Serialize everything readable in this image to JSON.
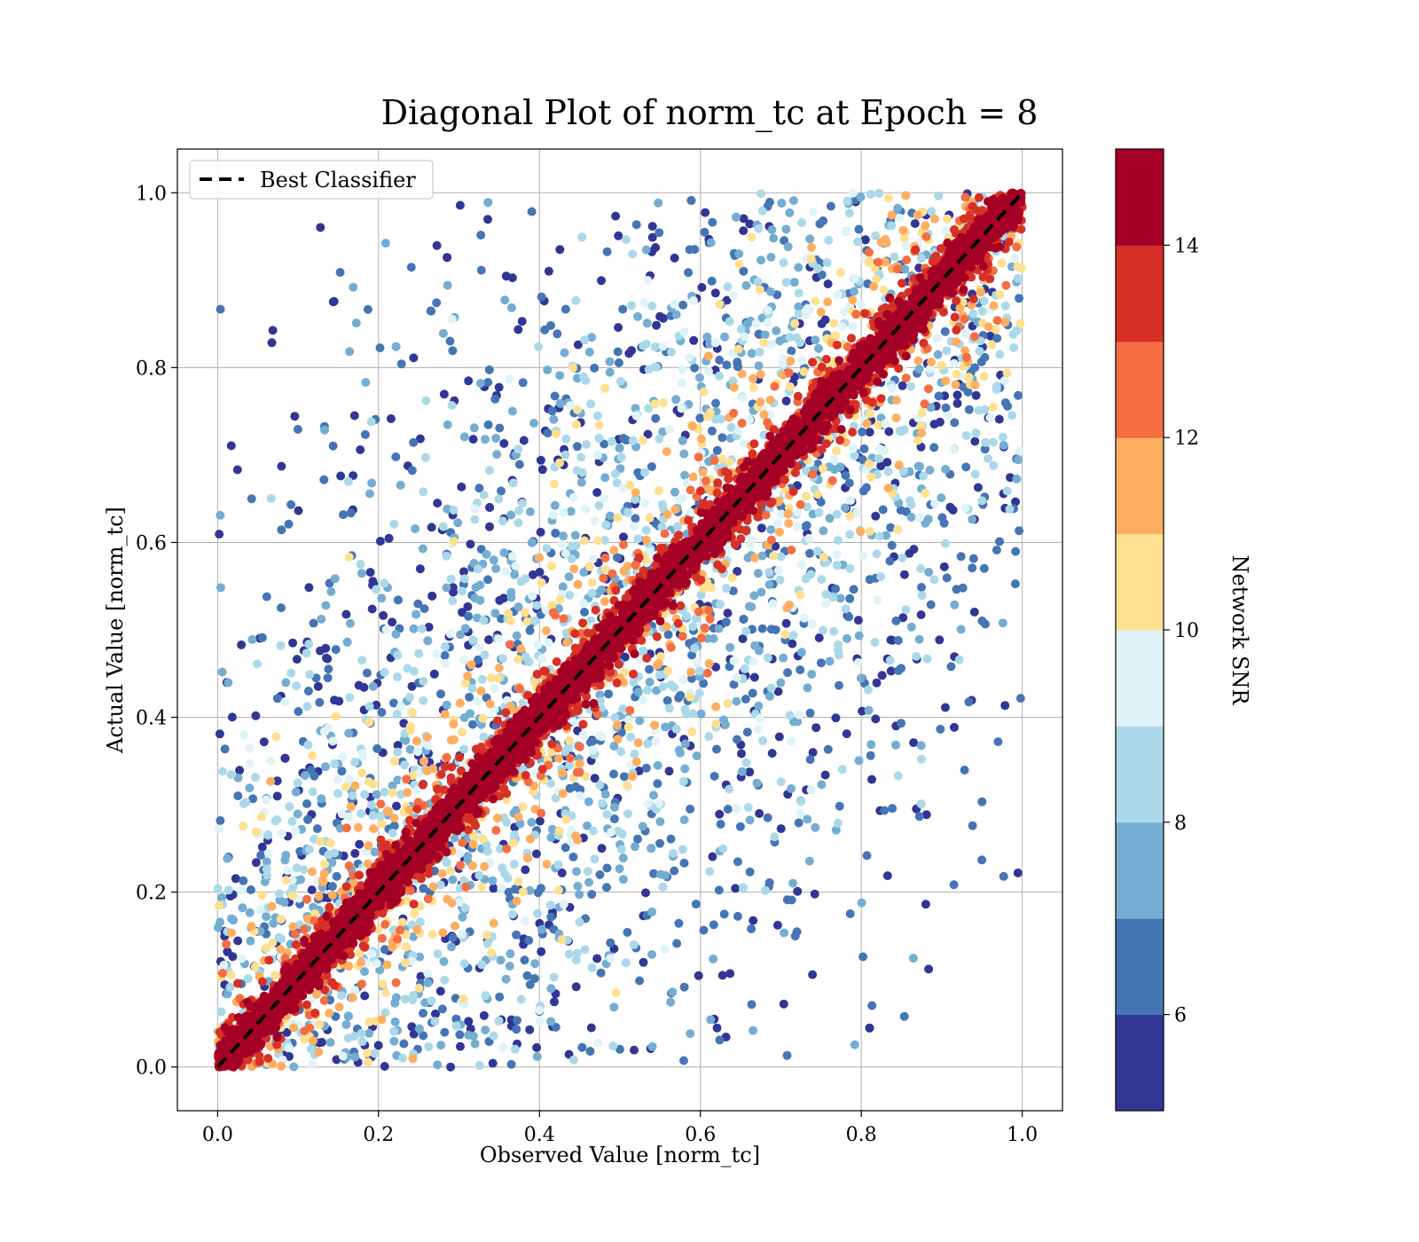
{
  "chart_data": {
    "type": "scatter",
    "title": "Diagonal Plot of norm_tc at Epoch = 8",
    "xlabel": "Observed Value [norm_tc]",
    "ylabel": "Actual Value [norm_tc]",
    "xlim": [
      -0.05,
      1.05
    ],
    "ylim": [
      -0.05,
      1.05
    ],
    "xticks": [
      0.0,
      0.2,
      0.4,
      0.6,
      0.8,
      1.0
    ],
    "yticks": [
      0.0,
      0.2,
      0.4,
      0.6,
      0.8,
      1.0
    ],
    "xtick_labels": [
      "0.0",
      "0.2",
      "0.4",
      "0.6",
      "0.8",
      "1.0"
    ],
    "ytick_labels": [
      "0.0",
      "0.2",
      "0.4",
      "0.6",
      "0.8",
      "1.0"
    ],
    "grid": true,
    "legend": {
      "placement": "top-left",
      "entries": [
        "Best Classifier"
      ]
    },
    "reference_line": {
      "name": "Best Classifier",
      "x": [
        0.0,
        1.0
      ],
      "y": [
        0.0,
        1.0
      ],
      "style": "dashed",
      "color": "#000000"
    },
    "colorbar": {
      "label": "Network SNR",
      "range": [
        5,
        15
      ],
      "ticks": [
        6,
        8,
        10,
        12,
        14
      ],
      "tick_labels": [
        "6",
        "8",
        "10",
        "12",
        "14"
      ],
      "colors": [
        "#313695",
        "#4575b4",
        "#74add1",
        "#abd9e9",
        "#e0f3f8",
        "#fee090",
        "#fdae61",
        "#f46d43",
        "#d73027",
        "#a50026"
      ]
    },
    "series": [
      {
        "color_value": "snr",
        "description_band": "high SNR points cluster tightly along the diagonal y = x; low SNR points scatter widely across the plot"
      }
    ]
  }
}
